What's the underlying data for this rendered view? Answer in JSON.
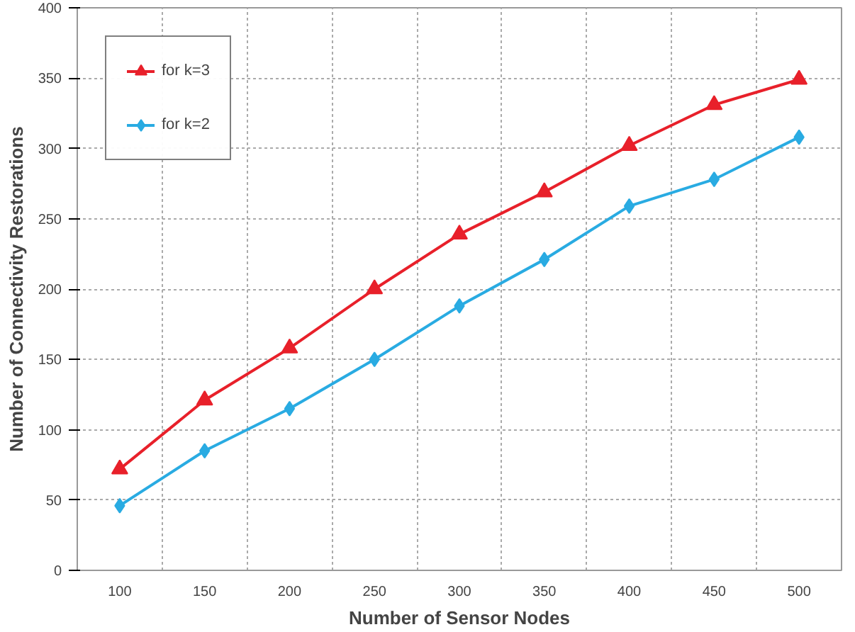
{
  "chart_data": {
    "type": "line",
    "xlabel": "Number of Sensor Nodes",
    "ylabel": "Number of Connectivity Restorations",
    "categories": [
      "100",
      "150",
      "200",
      "250",
      "300",
      "350",
      "400",
      "450",
      "500"
    ],
    "series": [
      {
        "name": "for k=3",
        "color": "#e8202a",
        "marker": "triangle",
        "values": [
          72,
          121,
          158,
          200,
          239,
          269,
          302,
          331,
          349
        ]
      },
      {
        "name": "for k=2",
        "color": "#29abe2",
        "marker": "diamond",
        "values": [
          46,
          85,
          115,
          150,
          188,
          221,
          259,
          278,
          308
        ]
      }
    ],
    "ylim": [
      0,
      400
    ],
    "yticks": [
      0,
      50,
      100,
      150,
      200,
      250,
      300,
      350,
      400
    ],
    "grid": true,
    "legend": "top left",
    "line_style": "solid"
  }
}
